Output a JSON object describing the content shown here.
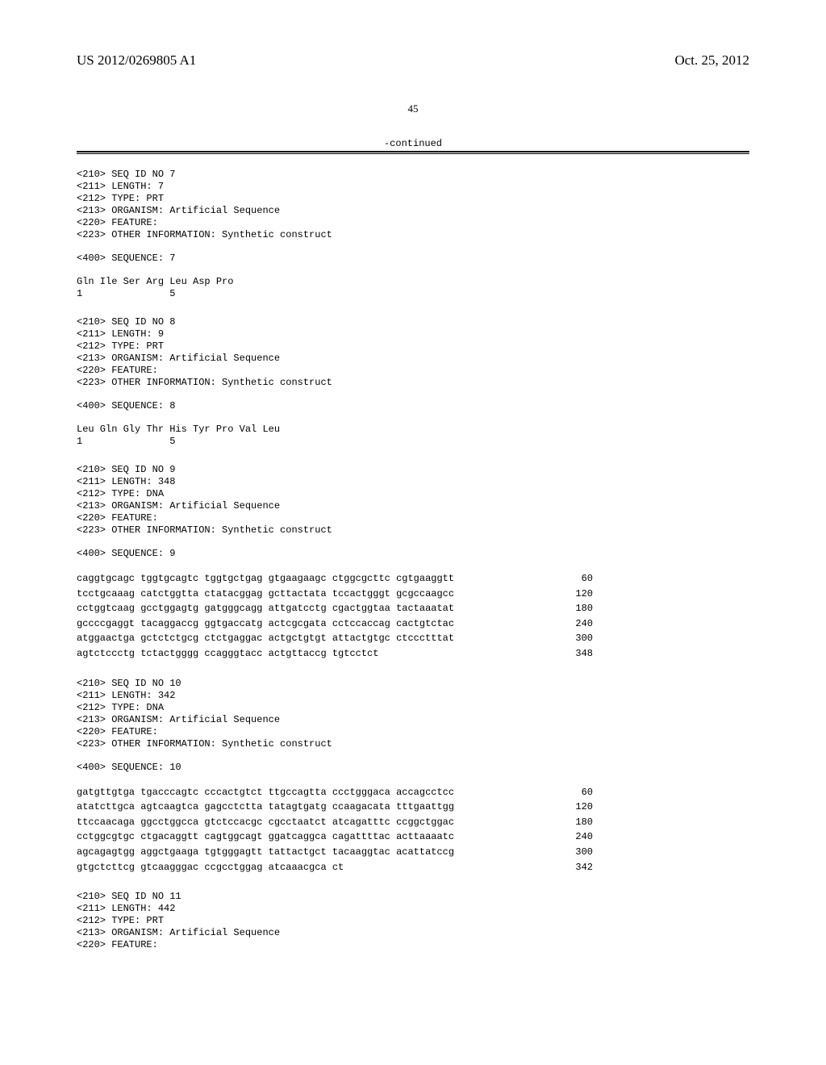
{
  "header": {
    "pub_number": "US 2012/0269805 A1",
    "pub_date": "Oct. 25, 2012"
  },
  "page_number": "45",
  "continued_label": "-continued",
  "sequences": [
    {
      "meta": "<210> SEQ ID NO 7\n<211> LENGTH: 7\n<212> TYPE: PRT\n<213> ORGANISM: Artificial Sequence\n<220> FEATURE:\n<223> OTHER INFORMATION: Synthetic construct",
      "seq_label": "<400> SEQUENCE: 7",
      "type": "prt",
      "data": "Gln Ile Ser Arg Leu Asp Pro\n1               5"
    },
    {
      "meta": "<210> SEQ ID NO 8\n<211> LENGTH: 9\n<212> TYPE: PRT\n<213> ORGANISM: Artificial Sequence\n<220> FEATURE:\n<223> OTHER INFORMATION: Synthetic construct",
      "seq_label": "<400> SEQUENCE: 8",
      "type": "prt",
      "data": "Leu Gln Gly Thr His Tyr Pro Val Leu\n1               5"
    },
    {
      "meta": "<210> SEQ ID NO 9\n<211> LENGTH: 348\n<212> TYPE: DNA\n<213> ORGANISM: Artificial Sequence\n<220> FEATURE:\n<223> OTHER INFORMATION: Synthetic construct",
      "seq_label": "<400> SEQUENCE: 9",
      "type": "dna",
      "lines": [
        {
          "seq": "caggtgcagc tggtgcagtc tggtgctgag gtgaagaagc ctggcgcttc cgtgaaggtt",
          "num": "60"
        },
        {
          "seq": "tcctgcaaag catctggtta ctatacggag gcttactata tccactgggt gcgccaagcc",
          "num": "120"
        },
        {
          "seq": "cctggtcaag gcctggagtg gatgggcagg attgatcctg cgactggtaa tactaaatat",
          "num": "180"
        },
        {
          "seq": "gccccgaggt tacaggaccg ggtgaccatg actcgcgata cctccaccag cactgtctac",
          "num": "240"
        },
        {
          "seq": "atggaactga gctctctgcg ctctgaggac actgctgtgt attactgtgc ctccctttat",
          "num": "300"
        },
        {
          "seq": "agtctccctg tctactgggg ccagggtacc actgttaccg tgtcctct",
          "num": "348"
        }
      ]
    },
    {
      "meta": "<210> SEQ ID NO 10\n<211> LENGTH: 342\n<212> TYPE: DNA\n<213> ORGANISM: Artificial Sequence\n<220> FEATURE:\n<223> OTHER INFORMATION: Synthetic construct",
      "seq_label": "<400> SEQUENCE: 10",
      "type": "dna",
      "lines": [
        {
          "seq": "gatgttgtga tgacccagtc cccactgtct ttgccagtta ccctgggaca accagcctcc",
          "num": "60"
        },
        {
          "seq": "atatcttgca agtcaagtca gagcctctta tatagtgatg ccaagacata tttgaattgg",
          "num": "120"
        },
        {
          "seq": "ttccaacaga ggcctggcca gtctccacgc cgcctaatct atcagatttc ccggctggac",
          "num": "180"
        },
        {
          "seq": "cctggcgtgc ctgacaggtt cagtggcagt ggatcaggca cagattttac acttaaaatc",
          "num": "240"
        },
        {
          "seq": "agcagagtgg aggctgaaga tgtgggagtt tattactgct tacaaggtac acattatccg",
          "num": "300"
        },
        {
          "seq": "gtgctcttcg gtcaagggac ccgcctggag atcaaacgca ct",
          "num": "342"
        }
      ]
    },
    {
      "meta": "<210> SEQ ID NO 11\n<211> LENGTH: 442\n<212> TYPE: PRT\n<213> ORGANISM: Artificial Sequence\n<220> FEATURE:",
      "seq_label": "",
      "type": "meta_only"
    }
  ]
}
